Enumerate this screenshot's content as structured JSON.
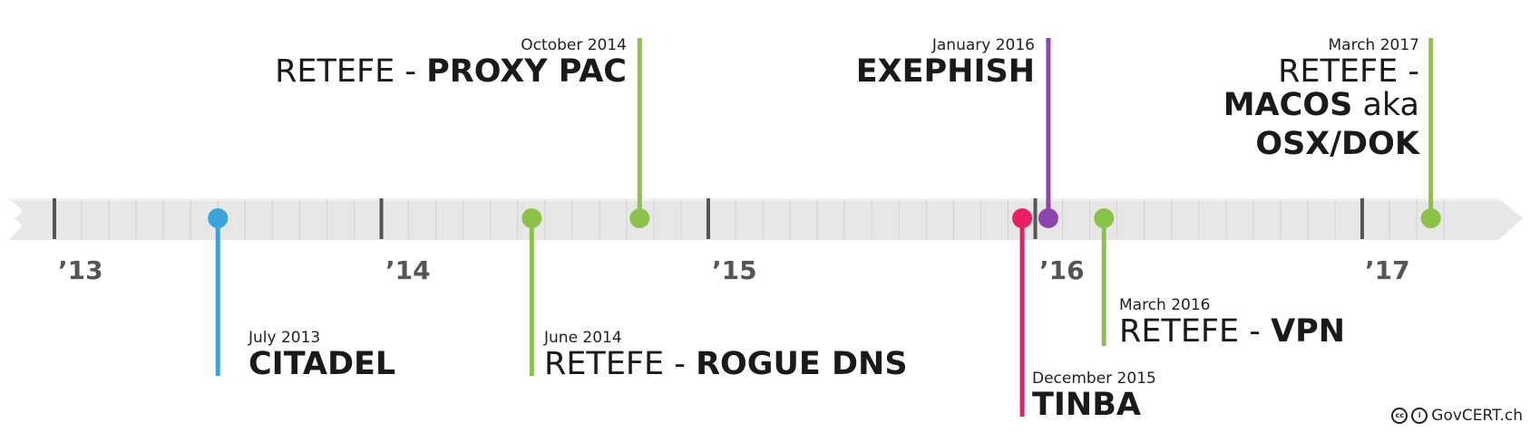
{
  "timeline": {
    "start_year": 2013,
    "end_year": 2017,
    "year_labels": [
      "’13",
      "’14",
      "’15",
      "’16",
      "’17"
    ]
  },
  "events": [
    {
      "id": "citadel",
      "date": "July 2013",
      "prefix": "",
      "name": "CITADEL",
      "color": "#3aa3dc",
      "value": 2013.5,
      "side": "below"
    },
    {
      "id": "rogue-dns",
      "date": "June 2014",
      "prefix": "RETEFE - ",
      "name": "ROGUE DNS",
      "color": "#8bc34a",
      "value": 2014.46,
      "side": "below"
    },
    {
      "id": "proxy-pac",
      "date": "October 2014",
      "prefix": "RETEFE - ",
      "name": "PROXY PAC",
      "color": "#8bc34a",
      "value": 2014.79,
      "side": "above"
    },
    {
      "id": "tinba",
      "date": "December 2015",
      "prefix": "",
      "name": "TINBA",
      "color": "#e91e63",
      "value": 2015.96,
      "side": "below"
    },
    {
      "id": "exephish",
      "date": "January 2016",
      "prefix": "",
      "name": "EXEPHISH",
      "color": "#8e44ad",
      "value": 2016.04,
      "side": "above"
    },
    {
      "id": "vpn",
      "date": "March 2016",
      "prefix": "RETEFE - ",
      "name": "VPN",
      "color": "#8bc34a",
      "value": 2016.21,
      "side": "below"
    },
    {
      "id": "macos",
      "date": "March 2017",
      "prefix": "RETEFE - ",
      "name_lines": [
        "MACOS",
        "aka",
        "OSX/DOK"
      ],
      "color": "#8bc34a",
      "value": 2017.21,
      "side": "above"
    }
  ],
  "credit": {
    "text": "GovCERT.ch",
    "icons": [
      "cc-icon",
      "by-icon"
    ]
  }
}
